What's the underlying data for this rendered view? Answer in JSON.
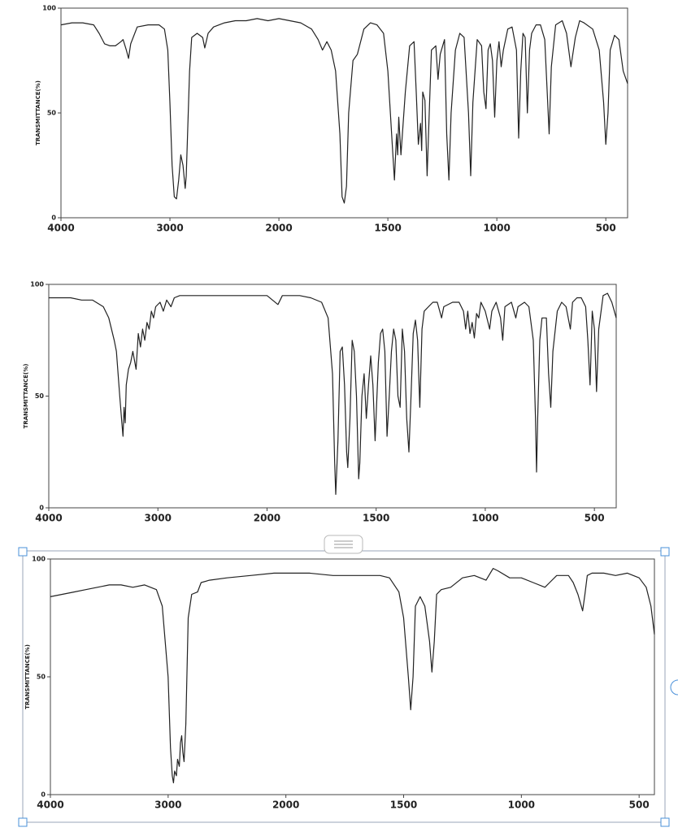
{
  "chart_data": [
    {
      "type": "line",
      "y_label": "TRANSMITTANCE(%)",
      "color": "#222222",
      "xlim": [
        4000,
        400
      ],
      "ylim": [
        0,
        100
      ],
      "xticks": [
        4000,
        3000,
        2000,
        1500,
        1000,
        500
      ],
      "yticks": [
        0,
        50,
        100
      ],
      "x": [
        4000,
        3900,
        3800,
        3700,
        3650,
        3600,
        3550,
        3500,
        3450,
        3430,
        3400,
        3380,
        3360,
        3300,
        3200,
        3100,
        3050,
        3020,
        3000,
        2980,
        2960,
        2940,
        2920,
        2900,
        2880,
        2860,
        2850,
        2820,
        2800,
        2750,
        2700,
        2680,
        2650,
        2600,
        2500,
        2400,
        2300,
        2200,
        2100,
        2000,
        1950,
        1900,
        1850,
        1820,
        1800,
        1780,
        1760,
        1740,
        1720,
        1710,
        1700,
        1690,
        1680,
        1660,
        1640,
        1630,
        1610,
        1580,
        1550,
        1520,
        1500,
        1480,
        1470,
        1460,
        1455,
        1450,
        1440,
        1420,
        1400,
        1380,
        1370,
        1360,
        1350,
        1345,
        1340,
        1330,
        1320,
        1310,
        1300,
        1280,
        1270,
        1260,
        1240,
        1230,
        1220,
        1210,
        1190,
        1170,
        1150,
        1130,
        1120,
        1110,
        1090,
        1070,
        1060,
        1050,
        1040,
        1030,
        1020,
        1010,
        1000,
        990,
        980,
        970,
        950,
        930,
        910,
        900,
        890,
        880,
        870,
        860,
        850,
        840,
        820,
        800,
        780,
        760,
        750,
        730,
        700,
        680,
        660,
        640,
        620,
        600,
        560,
        530,
        510,
        500,
        490,
        480,
        460,
        440,
        420,
        400
      ],
      "values": [
        92,
        93,
        93,
        92,
        88,
        83,
        82,
        82,
        84,
        85,
        80,
        76,
        83,
        91,
        92,
        92,
        90,
        80,
        55,
        25,
        10,
        9,
        18,
        30,
        25,
        14,
        20,
        70,
        86,
        88,
        86,
        81,
        88,
        91,
        93,
        94,
        94,
        95,
        94,
        95,
        94,
        93,
        90,
        85,
        80,
        84,
        80,
        70,
        40,
        10,
        7,
        15,
        50,
        75,
        78,
        82,
        90,
        93,
        92,
        88,
        70,
        35,
        18,
        40,
        30,
        48,
        30,
        60,
        82,
        84,
        60,
        35,
        45,
        32,
        60,
        56,
        20,
        50,
        80,
        82,
        66,
        78,
        85,
        40,
        18,
        50,
        80,
        88,
        86,
        50,
        20,
        55,
        85,
        82,
        60,
        52,
        80,
        83,
        75,
        48,
        75,
        84,
        72,
        80,
        90,
        91,
        80,
        38,
        70,
        88,
        86,
        50,
        80,
        88,
        92,
        92,
        85,
        40,
        72,
        92,
        94,
        88,
        72,
        86,
        94,
        93,
        90,
        80,
        55,
        35,
        50,
        80,
        87,
        85,
        70,
        64
      ]
    },
    {
      "type": "line",
      "y_label": "TRANSMITTANCE(%)",
      "color": "#222222",
      "xlim": [
        4000,
        400
      ],
      "ylim": [
        0,
        100
      ],
      "xticks": [
        4000,
        3000,
        2000,
        1500,
        1000,
        500
      ],
      "yticks": [
        0,
        50,
        100
      ],
      "x": [
        4000,
        3900,
        3800,
        3700,
        3600,
        3500,
        3450,
        3400,
        3380,
        3350,
        3330,
        3320,
        3310,
        3300,
        3290,
        3270,
        3250,
        3230,
        3200,
        3180,
        3160,
        3140,
        3120,
        3100,
        3080,
        3060,
        3040,
        3020,
        2980,
        2950,
        2920,
        2880,
        2850,
        2800,
        2600,
        2400,
        2200,
        2000,
        1950,
        1930,
        1850,
        1800,
        1750,
        1720,
        1700,
        1690,
        1685,
        1675,
        1665,
        1655,
        1645,
        1635,
        1630,
        1620,
        1610,
        1600,
        1590,
        1580,
        1575,
        1565,
        1555,
        1545,
        1535,
        1525,
        1515,
        1505,
        1490,
        1480,
        1470,
        1460,
        1450,
        1440,
        1430,
        1420,
        1410,
        1400,
        1390,
        1380,
        1370,
        1360,
        1350,
        1340,
        1330,
        1320,
        1310,
        1300,
        1290,
        1280,
        1260,
        1240,
        1220,
        1200,
        1190,
        1150,
        1120,
        1100,
        1090,
        1080,
        1070,
        1060,
        1050,
        1040,
        1030,
        1020,
        1000,
        980,
        970,
        950,
        930,
        920,
        910,
        880,
        860,
        850,
        820,
        800,
        780,
        770,
        765,
        760,
        750,
        740,
        720,
        710,
        700,
        690,
        670,
        650,
        630,
        610,
        600,
        580,
        560,
        540,
        530,
        520,
        515,
        510,
        500,
        490,
        480,
        460,
        440,
        420,
        400
      ],
      "values": [
        94,
        94,
        94,
        93,
        93,
        90,
        85,
        75,
        70,
        50,
        38,
        32,
        45,
        38,
        55,
        62,
        65,
        70,
        62,
        78,
        72,
        80,
        75,
        83,
        80,
        88,
        85,
        90,
        92,
        88,
        93,
        90,
        94,
        95,
        95,
        95,
        95,
        95,
        91,
        95,
        95,
        94,
        92,
        85,
        60,
        20,
        6,
        30,
        70,
        72,
        55,
        25,
        18,
        40,
        75,
        70,
        50,
        13,
        20,
        50,
        60,
        40,
        55,
        68,
        55,
        30,
        65,
        78,
        80,
        70,
        32,
        50,
        70,
        80,
        75,
        50,
        45,
        80,
        70,
        40,
        25,
        50,
        78,
        84,
        75,
        45,
        80,
        88,
        90,
        92,
        92,
        85,
        90,
        92,
        92,
        88,
        80,
        88,
        78,
        83,
        76,
        87,
        85,
        92,
        88,
        80,
        88,
        92,
        85,
        75,
        90,
        92,
        85,
        90,
        92,
        90,
        75,
        40,
        16,
        40,
        75,
        85,
        85,
        60,
        45,
        70,
        88,
        92,
        90,
        80,
        92,
        94,
        94,
        90,
        75,
        55,
        70,
        88,
        80,
        52,
        80,
        95,
        96,
        92,
        85
      ]
    },
    {
      "type": "line",
      "y_label": "TRANSMITTANCE(%)",
      "color": "#222222",
      "xlim": [
        4000,
        435
      ],
      "ylim": [
        0,
        100
      ],
      "xticks": [
        4000,
        3000,
        2000,
        1500,
        1000,
        500
      ],
      "yticks": [
        0,
        50,
        100
      ],
      "x": [
        4000,
        3900,
        3800,
        3700,
        3600,
        3500,
        3400,
        3300,
        3200,
        3100,
        3050,
        3000,
        2980,
        2965,
        2955,
        2945,
        2930,
        2920,
        2905,
        2895,
        2885,
        2875,
        2865,
        2850,
        2830,
        2800,
        2750,
        2720,
        2650,
        2500,
        2300,
        2100,
        2000,
        1900,
        1800,
        1700,
        1600,
        1560,
        1520,
        1500,
        1480,
        1470,
        1460,
        1450,
        1430,
        1410,
        1390,
        1380,
        1370,
        1360,
        1340,
        1300,
        1250,
        1200,
        1150,
        1120,
        1100,
        1050,
        1000,
        950,
        900,
        880,
        850,
        800,
        780,
        760,
        740,
        730,
        720,
        700,
        650,
        600,
        550,
        500,
        470,
        450,
        435
      ],
      "values": [
        84,
        85,
        86,
        87,
        88,
        89,
        89,
        88,
        89,
        87,
        80,
        50,
        20,
        8,
        5,
        10,
        8,
        15,
        12,
        22,
        25,
        18,
        14,
        30,
        75,
        85,
        86,
        90,
        91,
        92,
        93,
        94,
        94,
        94,
        93,
        93,
        93,
        92,
        86,
        75,
        50,
        36,
        50,
        80,
        84,
        80,
        65,
        52,
        65,
        85,
        87,
        88,
        92,
        93,
        91,
        96,
        95,
        92,
        92,
        90,
        88,
        90,
        93,
        93,
        90,
        85,
        78,
        85,
        93,
        94,
        94,
        93,
        94,
        92,
        88,
        80,
        68
      ]
    }
  ]
}
